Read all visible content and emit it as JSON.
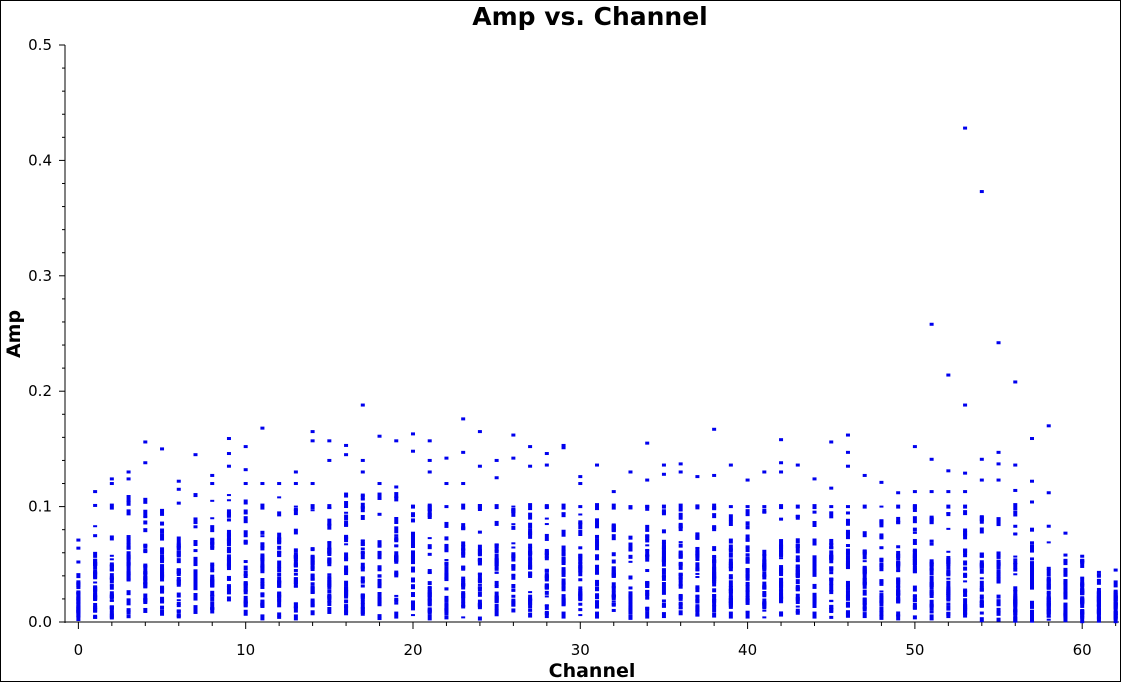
{
  "chart_data": {
    "type": "scatter",
    "title": "Amp vs. Channel",
    "xlabel": "Channel",
    "ylabel": "Amp",
    "xlim": [
      -0.8,
      62.2
    ],
    "ylim": [
      0.0,
      0.5
    ],
    "x_ticks": [
      0,
      10,
      20,
      30,
      40,
      50,
      60
    ],
    "y_ticks": [
      0.0,
      0.1,
      0.2,
      0.3,
      0.4,
      0.5
    ],
    "x_tick_labels": [
      "0",
      "10",
      "20",
      "30",
      "40",
      "50",
      "60"
    ],
    "y_tick_labels": [
      "0.0",
      "0.1",
      "0.2",
      "0.3",
      "0.4",
      "0.5"
    ],
    "marker_color": "#0000ee",
    "grid": false,
    "legend": "none",
    "series": [
      {
        "channels": [
          0,
          1,
          2,
          3,
          4,
          5,
          6,
          7,
          8,
          9,
          10,
          11,
          12,
          13,
          14,
          15,
          16,
          17,
          18,
          19,
          20,
          21,
          22,
          23,
          24,
          25,
          26,
          27,
          28,
          29,
          30,
          31,
          32,
          33,
          34,
          35,
          36,
          37,
          38,
          39,
          40,
          41,
          42,
          43,
          44,
          45,
          46,
          47,
          48,
          49,
          50,
          51,
          52,
          53,
          54,
          55,
          56,
          57,
          58,
          59,
          60,
          61,
          62
        ],
        "dense_min": [
          0.003,
          0.004,
          0.004,
          0.005,
          0.01,
          0.008,
          0.004,
          0.01,
          0.01,
          0.02,
          0.008,
          0.004,
          0.004,
          0.004,
          0.008,
          0.01,
          0.008,
          0.008,
          0.003,
          0.006,
          0.006,
          0.004,
          0.004,
          0.004,
          0.003,
          0.008,
          0.01,
          0.006,
          0.006,
          0.006,
          0.006,
          0.006,
          0.01,
          0.004,
          0.006,
          0.006,
          0.008,
          0.006,
          0.006,
          0.006,
          0.006,
          0.004,
          0.006,
          0.008,
          0.006,
          0.004,
          0.006,
          0.006,
          0.004,
          0.004,
          0.004,
          0.004,
          0.006,
          0.006,
          0.002,
          0.002,
          0.002,
          0.002,
          0.002,
          0.002,
          0.002,
          0.002,
          0.002
        ],
        "dense_max": [
          0.052,
          0.083,
          0.1,
          0.107,
          0.105,
          0.095,
          0.103,
          0.11,
          0.105,
          0.11,
          0.104,
          0.1,
          0.108,
          0.1,
          0.1,
          0.1,
          0.11,
          0.11,
          0.11,
          0.11,
          0.1,
          0.1,
          0.1,
          0.1,
          0.1,
          0.1,
          0.1,
          0.1,
          0.1,
          0.1,
          0.1,
          0.1,
          0.1,
          0.1,
          0.1,
          0.1,
          0.1,
          0.1,
          0.1,
          0.1,
          0.1,
          0.1,
          0.1,
          0.1,
          0.1,
          0.1,
          0.1,
          0.1,
          0.1,
          0.1,
          0.1,
          0.09,
          0.1,
          0.1,
          0.09,
          0.09,
          0.1,
          0.08,
          0.069,
          0.053,
          0.053,
          0.041,
          0.033
        ],
        "outliers": [
          [
            0,
            0.064
          ],
          [
            0,
            0.071
          ],
          [
            1,
            0.113
          ],
          [
            1,
            0.101
          ],
          [
            2,
            0.124
          ],
          [
            2,
            0.12
          ],
          [
            3,
            0.13
          ],
          [
            3,
            0.124
          ],
          [
            4,
            0.156
          ],
          [
            4,
            0.138
          ],
          [
            5,
            0.15
          ],
          [
            6,
            0.122
          ],
          [
            6,
            0.115
          ],
          [
            7,
            0.145
          ],
          [
            8,
            0.127
          ],
          [
            8,
            0.12
          ],
          [
            9,
            0.159
          ],
          [
            9,
            0.146
          ],
          [
            9,
            0.135
          ],
          [
            10,
            0.152
          ],
          [
            10,
            0.132
          ],
          [
            10,
            0.12
          ],
          [
            11,
            0.168
          ],
          [
            11,
            0.12
          ],
          [
            12,
            0.12
          ],
          [
            13,
            0.13
          ],
          [
            13,
            0.12
          ],
          [
            14,
            0.165
          ],
          [
            14,
            0.157
          ],
          [
            14,
            0.12
          ],
          [
            15,
            0.157
          ],
          [
            15,
            0.14
          ],
          [
            16,
            0.153
          ],
          [
            16,
            0.145
          ],
          [
            17,
            0.188
          ],
          [
            17,
            0.14
          ],
          [
            17,
            0.13
          ],
          [
            18,
            0.161
          ],
          [
            18,
            0.12
          ],
          [
            19,
            0.157
          ],
          [
            19,
            0.117
          ],
          [
            20,
            0.163
          ],
          [
            20,
            0.148
          ],
          [
            21,
            0.157
          ],
          [
            21,
            0.14
          ],
          [
            21,
            0.13
          ],
          [
            22,
            0.142
          ],
          [
            22,
            0.12
          ],
          [
            23,
            0.176
          ],
          [
            23,
            0.147
          ],
          [
            23,
            0.12
          ],
          [
            24,
            0.165
          ],
          [
            24,
            0.135
          ],
          [
            25,
            0.14
          ],
          [
            25,
            0.125
          ],
          [
            26,
            0.162
          ],
          [
            26,
            0.142
          ],
          [
            27,
            0.152
          ],
          [
            27,
            0.135
          ],
          [
            28,
            0.146
          ],
          [
            28,
            0.136
          ],
          [
            29,
            0.153
          ],
          [
            29,
            0.151
          ],
          [
            30,
            0.126
          ],
          [
            30,
            0.12
          ],
          [
            31,
            0.136
          ],
          [
            32,
            0.113
          ],
          [
            33,
            0.13
          ],
          [
            34,
            0.155
          ],
          [
            34,
            0.123
          ],
          [
            35,
            0.136
          ],
          [
            35,
            0.128
          ],
          [
            36,
            0.137
          ],
          [
            36,
            0.13
          ],
          [
            37,
            0.126
          ],
          [
            38,
            0.167
          ],
          [
            38,
            0.127
          ],
          [
            39,
            0.136
          ],
          [
            40,
            0.123
          ],
          [
            41,
            0.13
          ],
          [
            42,
            0.158
          ],
          [
            42,
            0.138
          ],
          [
            42,
            0.13
          ],
          [
            43,
            0.136
          ],
          [
            44,
            0.124
          ],
          [
            45,
            0.156
          ],
          [
            45,
            0.116
          ],
          [
            46,
            0.162
          ],
          [
            46,
            0.147
          ],
          [
            46,
            0.135
          ],
          [
            47,
            0.127
          ],
          [
            48,
            0.121
          ],
          [
            49,
            0.112
          ],
          [
            50,
            0.152
          ],
          [
            50,
            0.113
          ],
          [
            51,
            0.258
          ],
          [
            51,
            0.141
          ],
          [
            51,
            0.113
          ],
          [
            52,
            0.214
          ],
          [
            52,
            0.131
          ],
          [
            52,
            0.113
          ],
          [
            53,
            0.428
          ],
          [
            53,
            0.188
          ],
          [
            53,
            0.129
          ],
          [
            53,
            0.113
          ],
          [
            54,
            0.373
          ],
          [
            54,
            0.141
          ],
          [
            54,
            0.123
          ],
          [
            55,
            0.242
          ],
          [
            55,
            0.147
          ],
          [
            55,
            0.137
          ],
          [
            55,
            0.123
          ],
          [
            56,
            0.208
          ],
          [
            56,
            0.136
          ],
          [
            56,
            0.114
          ],
          [
            57,
            0.159
          ],
          [
            57,
            0.122
          ],
          [
            57,
            0.104
          ],
          [
            58,
            0.17
          ],
          [
            58,
            0.112
          ],
          [
            58,
            0.083
          ],
          [
            59,
            0.077
          ],
          [
            59,
            0.058
          ],
          [
            60,
            0.057
          ],
          [
            60,
            0.053
          ],
          [
            61,
            0.043
          ],
          [
            62,
            0.045
          ]
        ]
      }
    ]
  }
}
